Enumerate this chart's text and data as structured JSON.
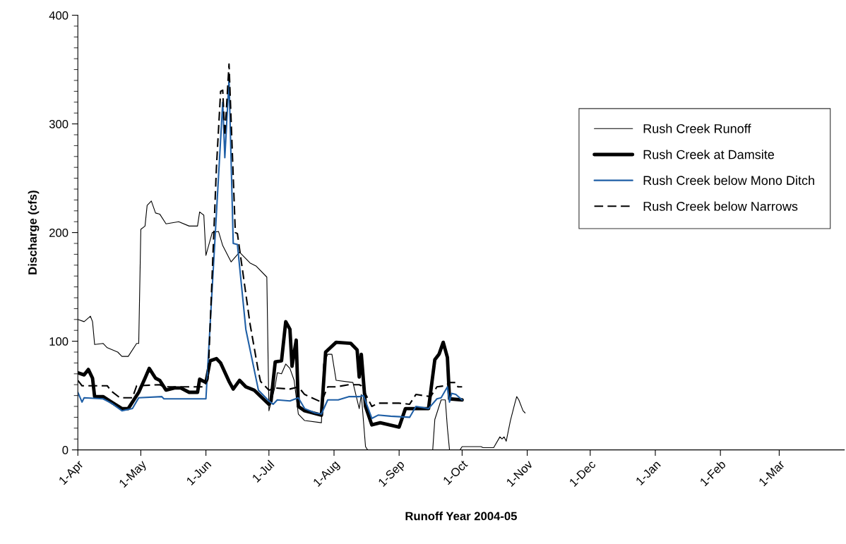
{
  "chart_data": {
    "type": "line",
    "xlabel": "Runoff Year 2004-05",
    "ylabel": "Discharge (cfs)",
    "xlim": [
      "2004-04-01",
      "2005-04-01"
    ],
    "xticks": [
      {
        "value": "2004-04-01",
        "label": "1-Apr"
      },
      {
        "value": "2004-05-01",
        "label": "1-May"
      },
      {
        "value": "2004-06-01",
        "label": "1-Jun"
      },
      {
        "value": "2004-07-01",
        "label": "1-Jul"
      },
      {
        "value": "2004-08-01",
        "label": "1-Aug"
      },
      {
        "value": "2004-09-01",
        "label": "1-Sep"
      },
      {
        "value": "2004-10-01",
        "label": "1-Oct"
      },
      {
        "value": "2004-11-01",
        "label": "1-Nov"
      },
      {
        "value": "2004-12-01",
        "label": "1-Dec"
      },
      {
        "value": "2005-01-01",
        "label": "1-Jan"
      },
      {
        "value": "2005-02-01",
        "label": "1-Feb"
      },
      {
        "value": "2005-03-01",
        "label": "1-Mar"
      }
    ],
    "ylim": [
      0,
      400
    ],
    "yticks": [
      0,
      100,
      200,
      300,
      400
    ],
    "grid": false,
    "legend": "top right",
    "marker": "none",
    "series": [
      {
        "name": "Rush Creek Runoff",
        "color": "#000000",
        "line_style": "solid",
        "x": [
          "2004-04-01",
          "2004-04-04",
          "2004-04-07",
          "2004-04-08",
          "2004-04-09",
          "2004-04-13",
          "2004-04-15",
          "2004-04-20",
          "2004-04-22",
          "2004-04-25",
          "2004-04-29",
          "2004-04-30",
          "2004-05-01",
          "2004-05-03",
          "2004-05-04",
          "2004-05-06",
          "2004-05-08",
          "2004-05-10",
          "2004-05-13",
          "2004-05-19",
          "2004-05-24",
          "2004-05-28",
          "2004-05-29",
          "2004-05-31",
          "2004-06-01",
          "2004-06-04",
          "2004-06-07",
          "2004-06-09",
          "2004-06-13",
          "2004-06-17",
          "2004-06-22",
          "2004-06-25",
          "2004-06-30",
          "2004-07-01",
          "2004-07-04",
          "2004-07-05",
          "2004-07-07",
          "2004-07-09",
          "2004-07-11",
          "2004-07-13",
          "2004-07-15",
          "2004-07-18",
          "2004-07-26",
          "2004-07-27",
          "2004-07-29",
          "2004-07-31",
          "2004-08-02",
          "2004-08-10",
          "2004-08-13",
          "2004-08-14",
          "2004-08-16",
          "2004-08-17",
          "2004-09-17",
          "2004-09-18",
          "2004-09-19",
          "2004-09-21",
          "2004-09-23",
          "2004-09-24",
          "2004-09-25",
          "2004-09-30",
          "2004-10-01",
          "2004-10-10",
          "2004-10-11",
          "2004-10-16",
          "2004-10-19",
          "2004-10-20",
          "2004-10-21",
          "2004-10-22",
          "2004-10-24",
          "2004-10-26",
          "2004-10-27",
          "2004-10-28",
          "2004-10-30",
          "2004-10-31"
        ],
        "values": [
          120,
          118,
          123,
          118,
          97,
          98,
          94,
          90,
          86,
          86,
          98,
          98,
          203,
          206,
          225,
          229,
          218,
          217,
          208,
          210,
          206,
          206,
          219,
          216,
          179,
          200,
          201,
          188,
          173,
          182,
          172,
          169,
          159,
          36,
          59,
          71,
          70,
          79,
          75,
          64,
          33,
          27,
          25,
          79,
          88,
          88,
          64,
          62,
          38,
          51,
          3,
          0,
          0,
          28,
          34,
          46,
          46,
          20,
          0,
          0,
          3,
          3,
          2,
          2,
          12,
          10,
          12,
          8,
          27,
          42,
          49,
          46,
          36,
          34
        ]
      },
      {
        "name": "Rush Creek at Damsite",
        "color": "#000000",
        "line_style": "solid",
        "x": [
          "2004-04-01",
          "2004-04-04",
          "2004-04-06",
          "2004-04-08",
          "2004-04-09",
          "2004-04-13",
          "2004-04-17",
          "2004-04-22",
          "2004-04-25",
          "2004-04-30",
          "2004-05-03",
          "2004-05-05",
          "2004-05-08",
          "2004-05-10",
          "2004-05-13",
          "2004-05-17",
          "2004-05-20",
          "2004-05-24",
          "2004-05-28",
          "2004-05-29",
          "2004-06-01",
          "2004-06-03",
          "2004-06-06",
          "2004-06-08",
          "2004-06-12",
          "2004-06-14",
          "2004-06-17",
          "2004-06-20",
          "2004-06-24",
          "2004-07-01",
          "2004-07-02",
          "2004-07-04",
          "2004-07-07",
          "2004-07-09",
          "2004-07-11",
          "2004-07-12",
          "2004-07-14",
          "2004-07-15",
          "2004-07-18",
          "2004-07-26",
          "2004-07-28",
          "2004-08-02",
          "2004-08-09",
          "2004-08-12",
          "2004-08-13",
          "2004-08-14",
          "2004-08-16",
          "2004-08-19",
          "2004-08-23",
          "2004-09-01",
          "2004-09-04",
          "2004-09-15",
          "2004-09-18",
          "2004-09-20",
          "2004-09-22",
          "2004-09-24",
          "2004-09-25",
          "2004-10-01"
        ],
        "values": [
          71,
          69,
          74,
          66,
          49,
          49,
          44,
          38,
          38,
          53,
          66,
          75,
          66,
          64,
          55,
          57,
          57,
          53,
          53,
          65,
          62,
          82,
          84,
          80,
          63,
          56,
          64,
          58,
          55,
          42,
          45,
          81,
          82,
          118,
          111,
          77,
          101,
          40,
          36,
          32,
          90,
          99,
          98,
          92,
          67,
          88,
          40,
          23,
          25,
          21,
          38,
          38,
          83,
          88,
          99,
          85,
          47,
          46
        ]
      },
      {
        "name": "Rush Creek below Mono Ditch",
        "color": "#1f5fa6",
        "line_style": "solid",
        "x": [
          "2004-04-01",
          "2004-04-03",
          "2004-04-04",
          "2004-04-13",
          "2004-04-17",
          "2004-04-22",
          "2004-04-27",
          "2004-04-30",
          "2004-05-11",
          "2004-05-12",
          "2004-06-01",
          "2004-06-09",
          "2004-06-10",
          "2004-06-12",
          "2004-06-14",
          "2004-06-16",
          "2004-06-20",
          "2004-06-26",
          "2004-07-01",
          "2004-07-03",
          "2004-07-05",
          "2004-07-11",
          "2004-07-15",
          "2004-07-18",
          "2004-07-23",
          "2004-07-26",
          "2004-07-29",
          "2004-08-03",
          "2004-08-08",
          "2004-08-13",
          "2004-08-15",
          "2004-08-19",
          "2004-08-22",
          "2004-08-28",
          "2004-09-06",
          "2004-09-09",
          "2004-09-15",
          "2004-09-19",
          "2004-09-21",
          "2004-09-24",
          "2004-09-25",
          "2004-09-26",
          "2004-09-28",
          "2004-10-01"
        ],
        "values": [
          53,
          44,
          48,
          47,
          43,
          36,
          38,
          48,
          49,
          47,
          47,
          320,
          269,
          341,
          190,
          189,
          111,
          55,
          45,
          42,
          46,
          45,
          48,
          38,
          34,
          33,
          46,
          46,
          49,
          49,
          50,
          29,
          32,
          31,
          30,
          40,
          38,
          47,
          48,
          58,
          44,
          52,
          51,
          46
        ]
      },
      {
        "name": "Rush Creek below Narrows",
        "color": "#000000",
        "line_style": "dashed",
        "x": [
          "2004-04-01",
          "2004-04-03",
          "2004-04-15",
          "2004-04-17",
          "2004-04-21",
          "2004-04-27",
          "2004-04-29",
          "2004-05-10",
          "2004-05-12",
          "2004-05-31",
          "2004-06-02",
          "2004-06-06",
          "2004-06-08",
          "2004-06-09",
          "2004-06-10",
          "2004-06-12",
          "2004-06-13",
          "2004-06-15",
          "2004-06-16",
          "2004-06-22",
          "2004-06-26",
          "2004-06-27",
          "2004-07-01",
          "2004-07-04",
          "2004-07-11",
          "2004-07-15",
          "2004-07-18",
          "2004-07-26",
          "2004-07-29",
          "2004-08-02",
          "2004-08-08",
          "2004-08-13",
          "2004-08-14",
          "2004-08-19",
          "2004-08-22",
          "2004-09-01",
          "2004-09-06",
          "2004-09-09",
          "2004-09-16",
          "2004-09-19",
          "2004-09-23",
          "2004-09-25",
          "2004-09-28",
          "2004-09-29",
          "2004-10-01"
        ],
        "values": [
          64,
          59,
          59,
          54,
          48,
          48,
          59,
          60,
          58,
          58,
          65,
          260,
          330,
          331,
          289,
          355,
          303,
          200,
          199,
          116,
          72,
          63,
          55,
          57,
          56,
          58,
          51,
          44,
          58,
          58,
          60,
          60,
          59,
          40,
          43,
          43,
          42,
          51,
          49,
          58,
          59,
          62,
          62,
          58,
          58
        ]
      }
    ]
  }
}
